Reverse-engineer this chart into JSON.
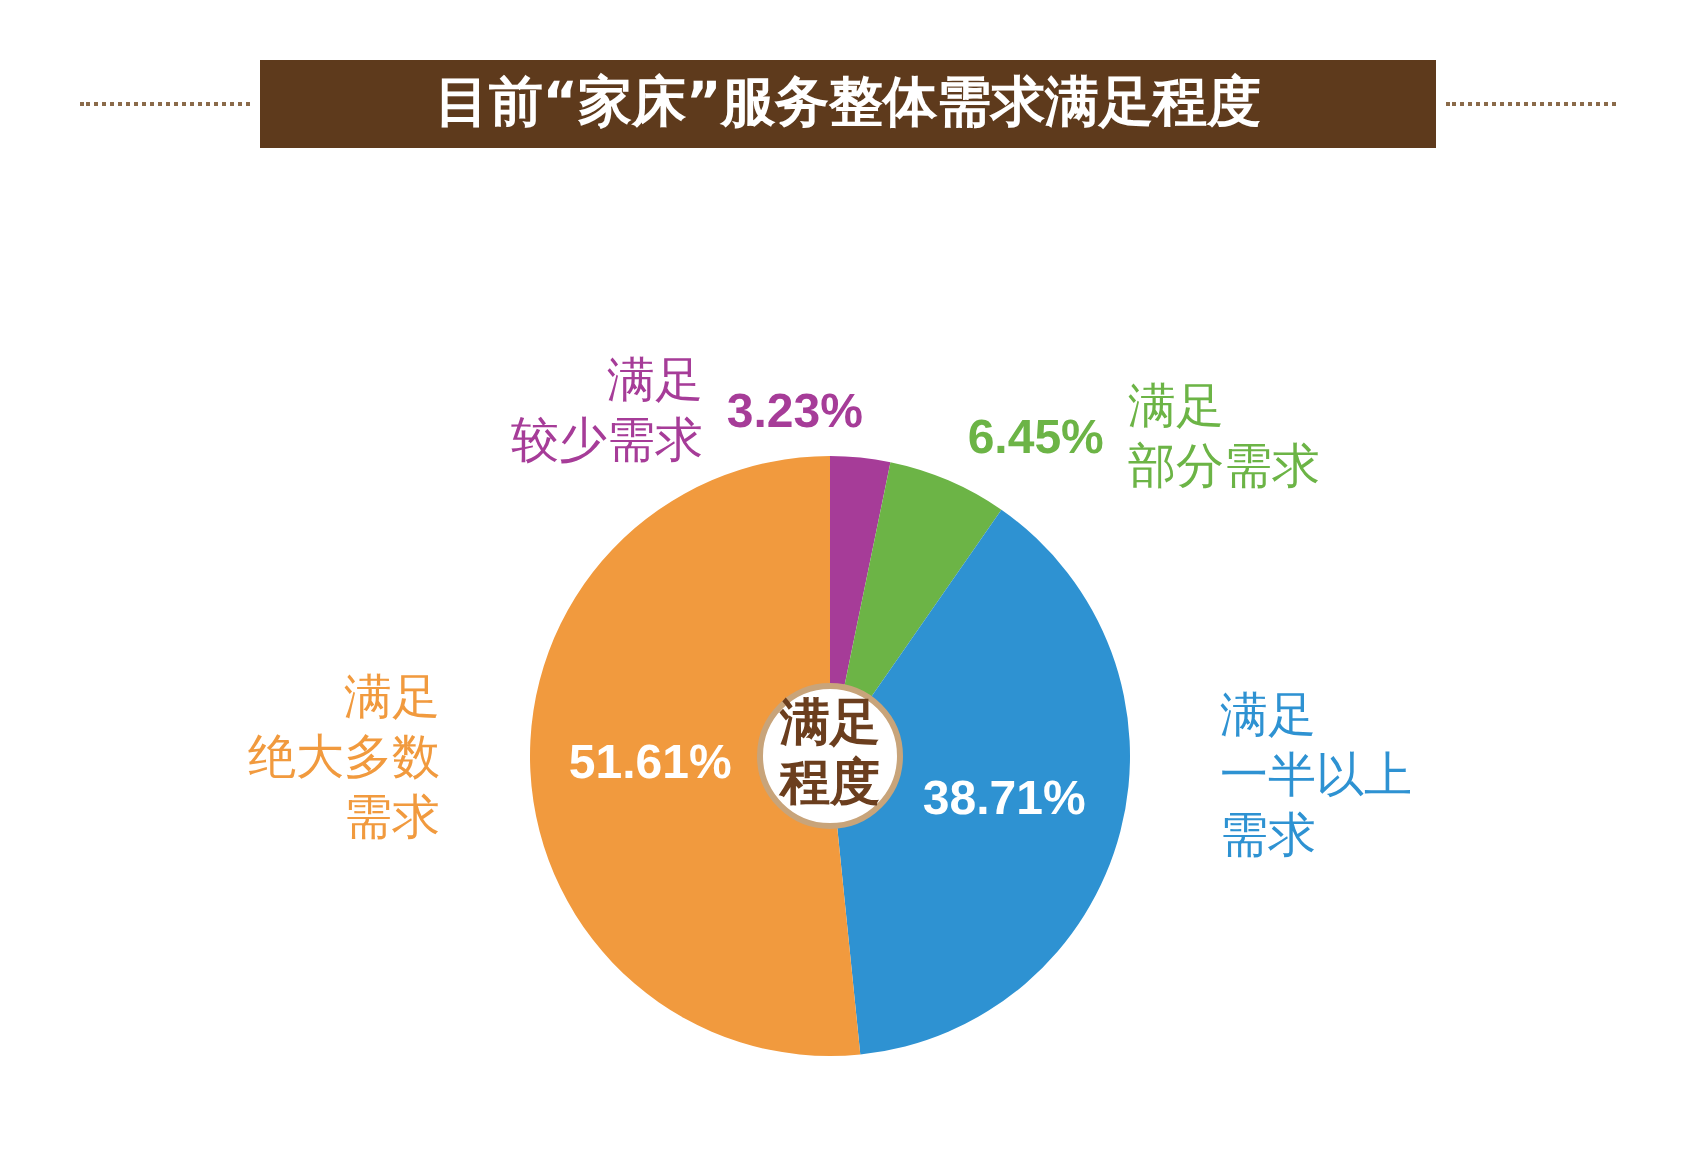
{
  "chart_data": {
    "type": "donut",
    "title": "目前“家床”服务整体需求满足程度",
    "categories": [
      "满足较少需求",
      "满足部分需求",
      "满足一半以上需求",
      "满足绝大多数需求"
    ],
    "values": [
      3.23,
      6.45,
      38.71,
      51.61
    ],
    "colors": [
      "#a63c98",
      "#6cb446",
      "#2e92d2",
      "#f19a3e"
    ],
    "value_labels": [
      "3.23%",
      "6.45%",
      "38.71%",
      "51.61%"
    ],
    "annotations": [
      "满足程度"
    ],
    "legend": false
  }
}
